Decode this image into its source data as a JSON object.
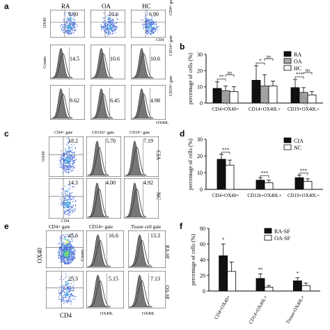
{
  "panels": {
    "a": {
      "letter": "a",
      "groups": [
        "RA",
        "OA",
        "HC"
      ],
      "row1_values": [
        "9.30",
        "10.6",
        "6.90"
      ],
      "row2_values": [
        "14.5",
        "10.6",
        "10.6"
      ],
      "row3_values": [
        "9.62",
        "6.45",
        "4.98"
      ],
      "row_gates": [
        "CD4+ gate",
        "CD14+ gate",
        "CD19+ gate"
      ],
      "y_axis_row1": "OX40",
      "x_axis_row1": "CD4",
      "y_axis_hist": "Counts",
      "x_axis_hist": "OX40L"
    },
    "c": {
      "letter": "c",
      "gates": [
        "CD4+ gate",
        "CD11b+ gate",
        "CD19+ gate"
      ],
      "row_labels": [
        "CIA",
        "NC"
      ],
      "row1_values": [
        "18.2",
        "5.70",
        "7.19"
      ],
      "row2_values": [
        "14.3",
        "4.00",
        "4.92"
      ],
      "y_axis": "OX40",
      "x_axis": "CD4"
    },
    "e": {
      "letter": "e",
      "gates": [
        "CD4+ gate",
        "CD14+ gate",
        "Tissue cell gate"
      ],
      "row_labels": [
        "RA-SF",
        "OA-SF"
      ],
      "row1_values": [
        "45.6",
        "16.6",
        "13.3"
      ],
      "row2_values": [
        "25.3",
        "5.15",
        "7.13"
      ],
      "y_axis": "OX40",
      "x_axis": "CD4",
      "y_axis_hist": "Counts",
      "x_axis_hist": "OX40L"
    }
  },
  "chart_data": [
    {
      "panel": "b",
      "type": "bar",
      "ylabel": "percentage of cells (%)",
      "ylim": [
        0,
        30
      ],
      "yticks": [
        0,
        10,
        20,
        30
      ],
      "categories": [
        "CD4+OX40+",
        "CD14+OX40L+",
        "CD19+OX40L+"
      ],
      "series": [
        {
          "name": "RA",
          "values": [
            9,
            14,
            9.5
          ],
          "errors": [
            4,
            9,
            5
          ],
          "color": "#111111"
        },
        {
          "name": "OA",
          "values": [
            7.5,
            10.5,
            6.5
          ],
          "errors": [
            3,
            7,
            3
          ],
          "color": "#aaaaaa"
        },
        {
          "name": "HC",
          "values": [
            7,
            10.5,
            5
          ],
          "errors": [
            3,
            3,
            2
          ],
          "color": "#ffffff"
        }
      ],
      "significance": [
        {
          "label": "**",
          "category": 0,
          "from": 0,
          "to": 1
        },
        {
          "label": "ns",
          "category": 0,
          "from": 1,
          "to": 2
        },
        {
          "label": "*",
          "category": 1,
          "from": 0,
          "to": 1
        },
        {
          "label": "ns",
          "category": 1,
          "from": 1,
          "to": 2
        },
        {
          "label": "***",
          "category": 2,
          "from": 0,
          "to": 1
        },
        {
          "label": "ns",
          "category": 2,
          "from": 1,
          "to": 2
        }
      ],
      "legend": "top-right"
    },
    {
      "panel": "d",
      "type": "bar",
      "ylabel": "percentage of cells (%)",
      "ylim": [
        0,
        30
      ],
      "yticks": [
        0,
        10,
        20,
        30
      ],
      "categories": [
        "CD4+OX40+",
        "CD11b+OX40L+",
        "CD19+OX40L+"
      ],
      "series": [
        {
          "name": "CIA",
          "values": [
            18,
            5.5,
            7
          ],
          "errors": [
            3,
            1.5,
            1.5
          ],
          "color": "#111111"
        },
        {
          "name": "NC",
          "values": [
            14.5,
            4,
            4.8
          ],
          "errors": [
            3,
            1.5,
            1.5
          ],
          "color": "#ffffff"
        }
      ],
      "significance": [
        {
          "label": "***",
          "category": 0
        },
        {
          "label": "***",
          "category": 1
        },
        {
          "label": "***",
          "category": 2
        }
      ],
      "legend": "top-right"
    },
    {
      "panel": "f",
      "type": "bar",
      "ylabel": "percentage of cells (%)",
      "ylim": [
        0,
        80
      ],
      "yticks": [
        0,
        20,
        40,
        60,
        80
      ],
      "categories": [
        "CD4+OX40+",
        "CD14+OX40L+",
        "Tissue-OX40L+"
      ],
      "series": [
        {
          "name": "RA-SF",
          "values": [
            45,
            16,
            13
          ],
          "errors": [
            15,
            6,
            4
          ],
          "color": "#111111"
        },
        {
          "name": "OA-SF",
          "values": [
            25,
            5,
            7
          ],
          "errors": [
            12,
            2,
            3
          ],
          "color": "#ffffff"
        }
      ],
      "significance": [
        {
          "label": "*",
          "category": 0
        },
        {
          "label": "**",
          "category": 1
        },
        {
          "label": "*",
          "category": 2
        }
      ],
      "legend": "top-right"
    }
  ],
  "panel_letters": {
    "b": "b",
    "d": "d",
    "f": "f"
  }
}
